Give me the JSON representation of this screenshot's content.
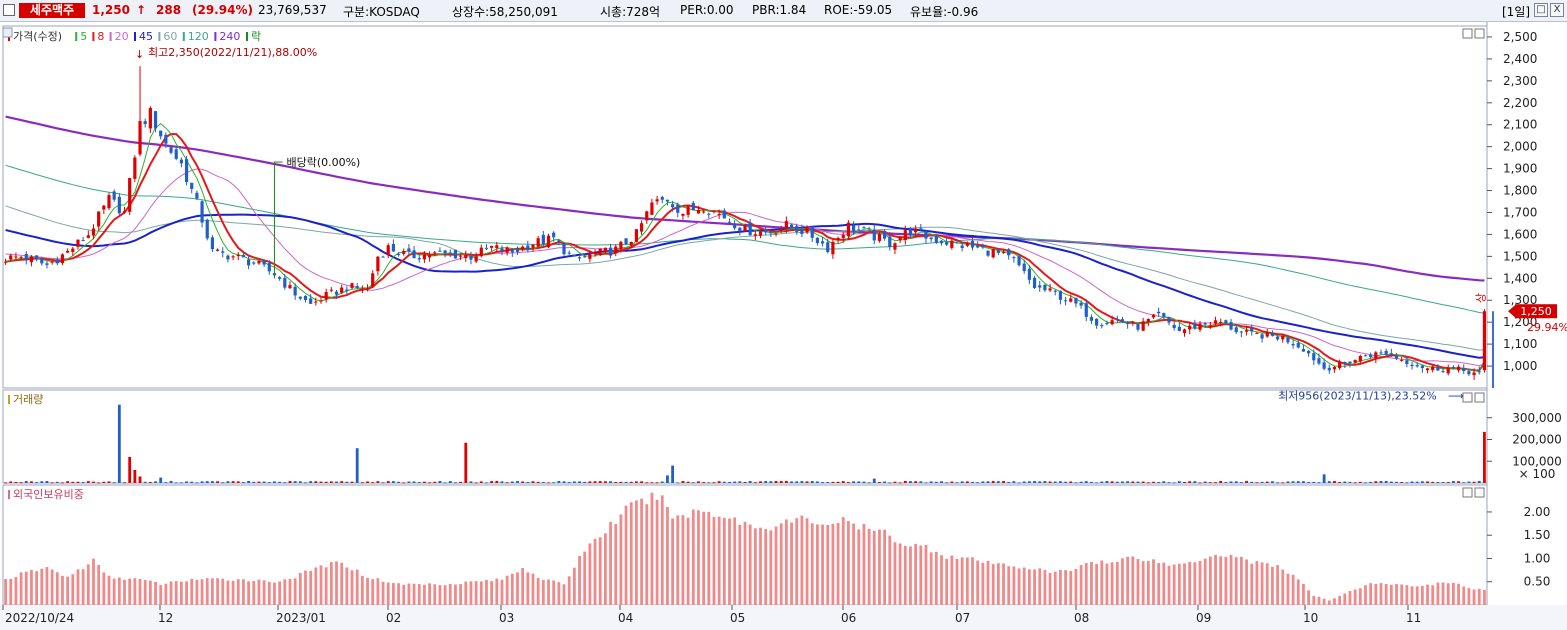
{
  "header": {
    "stock_name": "세주맥주",
    "price": "1,250",
    "arrow": "↑",
    "change": "288",
    "change_pct": "(29.94%)",
    "volume": "23,769,537",
    "market": "구분:KOSDAQ",
    "listed_shares": "상장수:58,250,091",
    "market_cap": "시총:728억",
    "per": "PER:0.00",
    "pbr": "PBR:1.84",
    "roe": "ROE:-59.05",
    "float_ratio": "유보율:-0.96",
    "period": "[1일]",
    "btn_min": "_",
    "btn_restore": "□",
    "btn_close": "X"
  },
  "colors": {
    "up": "#e00000",
    "down": "#1f5fc7",
    "ma5": "#2bb52b",
    "ma8": "#e31a1a",
    "ma20": "#cc66cc",
    "ma45": "#1a22c9",
    "ma60": "#7aa8a8",
    "ma120": "#3aa88a",
    "ma240": "#8a2bbf",
    "foreign": "#f08a8a",
    "grid": "#b8c4dc"
  },
  "chart_data": [
    {
      "type": "candlestick",
      "title": "가격(수정)",
      "legend": [
        {
          "name": "가격(수정)",
          "color": "#e00000"
        },
        {
          "name": "5",
          "color": "#2bb52b"
        },
        {
          "name": "8",
          "color": "#e31a1a"
        },
        {
          "name": "20",
          "color": "#cc66cc"
        },
        {
          "name": "45",
          "color": "#1a22c9"
        },
        {
          "name": "60",
          "color": "#7aa8a8"
        },
        {
          "name": "120",
          "color": "#3aa88a"
        },
        {
          "name": "240",
          "color": "#8a2bbf"
        },
        {
          "name": "락",
          "color": "#1a8a1a"
        }
      ],
      "ylim": [
        900,
        2550
      ],
      "y_ticks": [
        "1,000",
        "1,100",
        "1,200",
        "1,300",
        "1,400",
        "1,500",
        "1,600",
        "1,700",
        "1,800",
        "1,900",
        "2,000",
        "2,100",
        "2,200",
        "2,300",
        "2,400",
        "2,500"
      ],
      "x_tick_labels": [
        "2022/10/24",
        "12",
        "2023/01",
        "02",
        "03",
        "04",
        "05",
        "06",
        "07",
        "08",
        "09",
        "10",
        "11"
      ],
      "price_anchors": [
        [
          0,
          1490
        ],
        [
          3,
          1500
        ],
        [
          8,
          1460
        ],
        [
          12,
          1520
        ],
        [
          16,
          1600
        ],
        [
          20,
          1760
        ],
        [
          23,
          1700
        ],
        [
          26,
          2100
        ],
        [
          28,
          2150
        ],
        [
          31,
          2010
        ],
        [
          34,
          1920
        ],
        [
          37,
          1740
        ],
        [
          40,
          1520
        ],
        [
          44,
          1500
        ],
        [
          48,
          1470
        ],
        [
          52,
          1420
        ],
        [
          56,
          1330
        ],
        [
          59,
          1280
        ],
        [
          62,
          1320
        ],
        [
          66,
          1360
        ],
        [
          70,
          1350
        ],
        [
          72,
          1500
        ],
        [
          74,
          1540
        ],
        [
          78,
          1500
        ],
        [
          82,
          1510
        ],
        [
          86,
          1510
        ],
        [
          90,
          1500
        ],
        [
          94,
          1540
        ],
        [
          98,
          1520
        ],
        [
          102,
          1560
        ],
        [
          106,
          1580
        ],
        [
          110,
          1480
        ],
        [
          114,
          1510
        ],
        [
          118,
          1530
        ],
        [
          122,
          1600
        ],
        [
          125,
          1740
        ],
        [
          128,
          1760
        ],
        [
          131,
          1700
        ],
        [
          135,
          1730
        ],
        [
          139,
          1680
        ],
        [
          143,
          1620
        ],
        [
          147,
          1610
        ],
        [
          151,
          1640
        ],
        [
          155,
          1610
        ],
        [
          159,
          1540
        ],
        [
          163,
          1640
        ],
        [
          167,
          1600
        ],
        [
          171,
          1560
        ],
        [
          175,
          1620
        ],
        [
          179,
          1580
        ],
        [
          183,
          1560
        ],
        [
          187,
          1540
        ],
        [
          191,
          1520
        ],
        [
          195,
          1480
        ],
        [
          199,
          1360
        ],
        [
          203,
          1330
        ],
        [
          207,
          1280
        ],
        [
          211,
          1200
        ],
        [
          215,
          1210
        ],
        [
          219,
          1180
        ],
        [
          223,
          1230
        ],
        [
          227,
          1160
        ],
        [
          231,
          1190
        ],
        [
          235,
          1200
        ],
        [
          239,
          1150
        ],
        [
          243,
          1140
        ],
        [
          247,
          1130
        ],
        [
          251,
          1080
        ],
        [
          255,
          990
        ],
        [
          259,
          1010
        ],
        [
          263,
          1050
        ],
        [
          267,
          1060
        ],
        [
          271,
          1020
        ],
        [
          275,
          990
        ],
        [
          279,
          990
        ],
        [
          283,
          975
        ],
        [
          285,
          962
        ],
        [
          286,
          1250
        ]
      ],
      "high": {
        "label": "최고2,350(2022/11/21),88.00%",
        "value": 2350,
        "index": 26
      },
      "low": {
        "label": "최저956(2023/11/13),23.52%",
        "value": 956,
        "index": 284
      },
      "ex_dividend": {
        "label": "배당락(0.00%)",
        "index": 52
      },
      "last_price_label": "1,250",
      "last_pct_label": "29.94%",
      "sangha_label": "상"
    },
    {
      "type": "bar",
      "title": "거래량",
      "ylim": [
        0,
        400000
      ],
      "y_ticks": [
        "100,000",
        "200,000",
        "300,000"
      ],
      "unit_label": "× 100",
      "spikes": [
        [
          22,
          360000
        ],
        [
          24,
          120000
        ],
        [
          25,
          60000
        ],
        [
          26,
          30000
        ],
        [
          30,
          25000
        ],
        [
          68,
          160000
        ],
        [
          89,
          185000
        ],
        [
          128,
          35000
        ],
        [
          129,
          80000
        ],
        [
          168,
          20000
        ],
        [
          255,
          40000
        ],
        [
          286,
          235000
        ]
      ]
    },
    {
      "type": "bar",
      "title": "외국인보유비중",
      "ylim": [
        0,
        2.45
      ],
      "y_ticks": [
        "0.50",
        "1.00",
        "1.50",
        "2.00"
      ],
      "holding_anchors": [
        [
          0,
          0.55
        ],
        [
          4,
          0.7
        ],
        [
          8,
          0.8
        ],
        [
          12,
          0.6
        ],
        [
          17,
          0.95
        ],
        [
          20,
          0.6
        ],
        [
          26,
          0.55
        ],
        [
          30,
          0.45
        ],
        [
          36,
          0.55
        ],
        [
          46,
          0.55
        ],
        [
          52,
          0.5
        ],
        [
          56,
          0.6
        ],
        [
          60,
          0.8
        ],
        [
          64,
          0.9
        ],
        [
          66,
          0.85
        ],
        [
          70,
          0.6
        ],
        [
          76,
          0.45
        ],
        [
          86,
          0.45
        ],
        [
          90,
          0.5
        ],
        [
          96,
          0.55
        ],
        [
          100,
          0.8
        ],
        [
          104,
          0.55
        ],
        [
          108,
          0.45
        ],
        [
          112,
          1.2
        ],
        [
          116,
          1.6
        ],
        [
          120,
          2.05
        ],
        [
          124,
          2.25
        ],
        [
          126,
          2.35
        ],
        [
          130,
          1.85
        ],
        [
          134,
          2.05
        ],
        [
          138,
          1.95
        ],
        [
          142,
          1.8
        ],
        [
          146,
          1.65
        ],
        [
          150,
          1.75
        ],
        [
          154,
          1.85
        ],
        [
          158,
          1.75
        ],
        [
          162,
          1.8
        ],
        [
          166,
          1.65
        ],
        [
          170,
          1.55
        ],
        [
          174,
          1.3
        ],
        [
          178,
          1.25
        ],
        [
          182,
          1.05
        ],
        [
          186,
          1.0
        ],
        [
          190,
          0.9
        ],
        [
          194,
          0.85
        ],
        [
          198,
          0.8
        ],
        [
          202,
          0.7
        ],
        [
          206,
          0.75
        ],
        [
          210,
          0.95
        ],
        [
          214,
          0.9
        ],
        [
          218,
          1.05
        ],
        [
          222,
          0.95
        ],
        [
          226,
          0.85
        ],
        [
          230,
          0.95
        ],
        [
          234,
          1.1
        ],
        [
          238,
          1.05
        ],
        [
          242,
          0.9
        ],
        [
          246,
          0.85
        ],
        [
          250,
          0.55
        ],
        [
          253,
          0.2
        ],
        [
          256,
          0.1
        ],
        [
          260,
          0.3
        ],
        [
          264,
          0.45
        ],
        [
          268,
          0.45
        ],
        [
          272,
          0.4
        ],
        [
          276,
          0.45
        ],
        [
          280,
          0.5
        ],
        [
          283,
          0.35
        ],
        [
          286,
          0.33
        ]
      ]
    }
  ]
}
